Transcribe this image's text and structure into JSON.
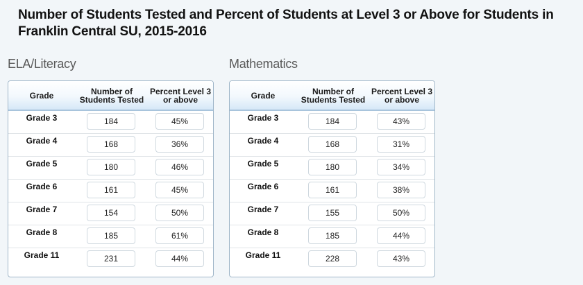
{
  "title": "Number of Students Tested and Percent of Students at Level 3 or Above for Students in Franklin Central SU, 2015-2016",
  "columns": {
    "grade": "Grade",
    "num_line1": "Number of",
    "num_line2": "Students Tested",
    "pct_line1": "Percent Level 3",
    "pct_line2": "or above"
  },
  "ela": {
    "label": "ELA/Literacy",
    "rows": [
      {
        "grade": "Grade 3",
        "tested": "184",
        "pct": "45%"
      },
      {
        "grade": "Grade 4",
        "tested": "168",
        "pct": "36%"
      },
      {
        "grade": "Grade 5",
        "tested": "180",
        "pct": "46%"
      },
      {
        "grade": "Grade 6",
        "tested": "161",
        "pct": "45%"
      },
      {
        "grade": "Grade 7",
        "tested": "154",
        "pct": "50%"
      },
      {
        "grade": "Grade 8",
        "tested": "185",
        "pct": "61%"
      },
      {
        "grade": "Grade 11",
        "tested": "231",
        "pct": "44%"
      }
    ]
  },
  "math": {
    "label": "Mathematics",
    "rows": [
      {
        "grade": "Grade 3",
        "tested": "184",
        "pct": "43%"
      },
      {
        "grade": "Grade 4",
        "tested": "168",
        "pct": "31%"
      },
      {
        "grade": "Grade 5",
        "tested": "180",
        "pct": "34%"
      },
      {
        "grade": "Grade 6",
        "tested": "161",
        "pct": "38%"
      },
      {
        "grade": "Grade 7",
        "tested": "155",
        "pct": "50%"
      },
      {
        "grade": "Grade 8",
        "tested": "185",
        "pct": "44%"
      },
      {
        "grade": "Grade 11",
        "tested": "228",
        "pct": "43%"
      }
    ]
  }
}
